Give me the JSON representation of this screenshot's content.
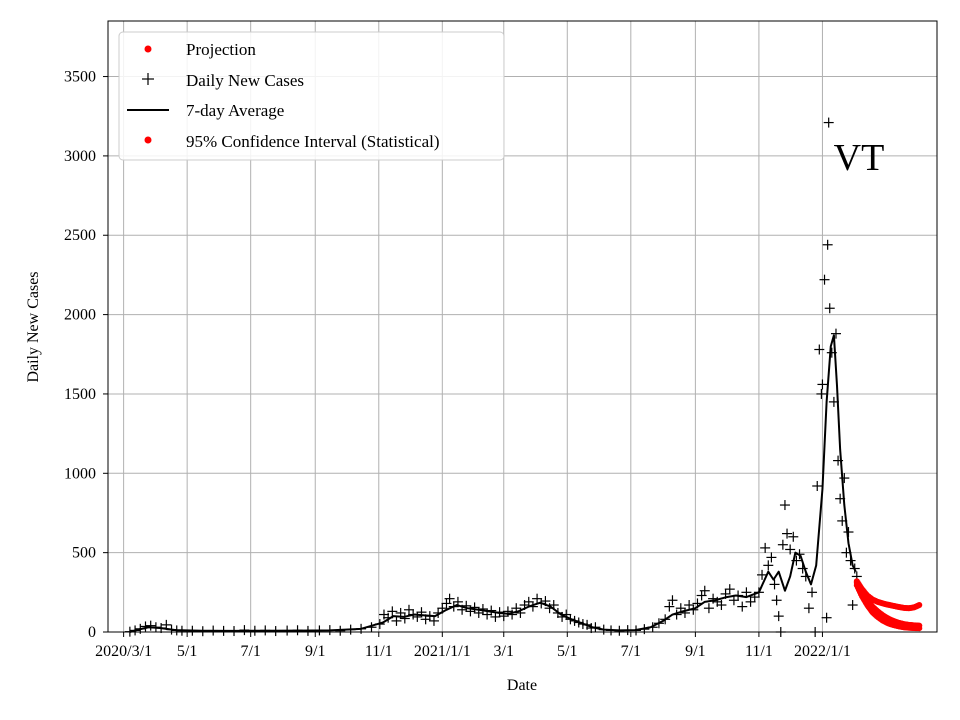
{
  "chart_data": {
    "type": "scatter",
    "title": "",
    "annotation": "VT",
    "xlabel": "Date",
    "ylabel": "Daily New Cases",
    "xlim": [
      "2020-02-15",
      "2022-04-21"
    ],
    "ylim": [
      0,
      3850
    ],
    "grid": true,
    "legend_position": "top-left",
    "x_ticks": [
      {
        "date": "2020-03-01",
        "label": "2020/3/1"
      },
      {
        "date": "2020-05-01",
        "label": "5/1"
      },
      {
        "date": "2020-07-01",
        "label": "7/1"
      },
      {
        "date": "2020-09-01",
        "label": "9/1"
      },
      {
        "date": "2020-11-01",
        "label": "11/1"
      },
      {
        "date": "2021-01-01",
        "label": "2021/1/1"
      },
      {
        "date": "2021-03-01",
        "label": "3/1"
      },
      {
        "date": "2021-05-01",
        "label": "5/1"
      },
      {
        "date": "2021-07-01",
        "label": "7/1"
      },
      {
        "date": "2021-09-01",
        "label": "9/1"
      },
      {
        "date": "2021-11-01",
        "label": "11/1"
      },
      {
        "date": "2022-01-01",
        "label": "2022/1/1"
      }
    ],
    "y_ticks": [
      0,
      500,
      1000,
      1500,
      2000,
      2500,
      3000,
      3500
    ],
    "legend": [
      {
        "label": "Projection",
        "marker": "dot",
        "color": "#ff0000"
      },
      {
        "label": "Daily New Cases",
        "marker": "plus",
        "color": "#000000"
      },
      {
        "label": "7-day Average",
        "marker": "line",
        "color": "#000000"
      },
      {
        "label": "95% Confidence Interval (Statistical)",
        "marker": "dot",
        "color": "#ff0000"
      }
    ],
    "series": [
      {
        "name": "7-day Average",
        "style": "line",
        "color": "#000000",
        "points": [
          [
            "2020-03-07",
            0
          ],
          [
            "2020-03-15",
            15
          ],
          [
            "2020-03-25",
            30
          ],
          [
            "2020-04-05",
            25
          ],
          [
            "2020-04-20",
            12
          ],
          [
            "2020-05-15",
            8
          ],
          [
            "2020-06-15",
            7
          ],
          [
            "2020-07-15",
            8
          ],
          [
            "2020-08-15",
            9
          ],
          [
            "2020-09-15",
            10
          ],
          [
            "2020-10-15",
            20
          ],
          [
            "2020-11-05",
            60
          ],
          [
            "2020-11-15",
            100
          ],
          [
            "2020-11-25",
            95
          ],
          [
            "2020-12-05",
            110
          ],
          [
            "2020-12-15",
            105
          ],
          [
            "2020-12-25",
            100
          ],
          [
            "2021-01-05",
            140
          ],
          [
            "2021-01-15",
            170
          ],
          [
            "2021-01-25",
            150
          ],
          [
            "2021-02-05",
            140
          ],
          [
            "2021-02-15",
            130
          ],
          [
            "2021-02-25",
            120
          ],
          [
            "2021-03-05",
            115
          ],
          [
            "2021-03-15",
            130
          ],
          [
            "2021-03-25",
            160
          ],
          [
            "2021-04-05",
            185
          ],
          [
            "2021-04-15",
            160
          ],
          [
            "2021-04-25",
            110
          ],
          [
            "2021-05-05",
            80
          ],
          [
            "2021-05-15",
            55
          ],
          [
            "2021-05-25",
            30
          ],
          [
            "2021-06-05",
            15
          ],
          [
            "2021-06-20",
            10
          ],
          [
            "2021-07-05",
            12
          ],
          [
            "2021-07-20",
            30
          ],
          [
            "2021-08-01",
            70
          ],
          [
            "2021-08-10",
            110
          ],
          [
            "2021-08-20",
            130
          ],
          [
            "2021-09-01",
            150
          ],
          [
            "2021-09-10",
            190
          ],
          [
            "2021-09-20",
            200
          ],
          [
            "2021-10-01",
            220
          ],
          [
            "2021-10-10",
            230
          ],
          [
            "2021-10-20",
            220
          ],
          [
            "2021-11-01",
            250
          ],
          [
            "2021-11-10",
            380
          ],
          [
            "2021-11-15",
            330
          ],
          [
            "2021-11-20",
            380
          ],
          [
            "2021-11-26",
            260
          ],
          [
            "2021-12-01",
            350
          ],
          [
            "2021-12-06",
            500
          ],
          [
            "2021-12-11",
            480
          ],
          [
            "2021-12-16",
            380
          ],
          [
            "2021-12-21",
            300
          ],
          [
            "2021-12-26",
            420
          ],
          [
            "2022-01-01",
            900
          ],
          [
            "2022-01-05",
            1450
          ],
          [
            "2022-01-09",
            1800
          ],
          [
            "2022-01-12",
            1870
          ],
          [
            "2022-01-15",
            1550
          ],
          [
            "2022-01-18",
            1150
          ],
          [
            "2022-01-22",
            800
          ],
          [
            "2022-01-26",
            560
          ],
          [
            "2022-01-30",
            420
          ],
          [
            "2022-02-02",
            380
          ]
        ]
      },
      {
        "name": "Daily New Cases",
        "style": "plus",
        "color": "#000000",
        "points": [
          [
            "2020-03-07",
            2
          ],
          [
            "2020-03-12",
            10
          ],
          [
            "2020-03-17",
            20
          ],
          [
            "2020-03-22",
            35
          ],
          [
            "2020-03-27",
            40
          ],
          [
            "2020-04-01",
            30
          ],
          [
            "2020-04-06",
            25
          ],
          [
            "2020-04-11",
            45
          ],
          [
            "2020-04-16",
            15
          ],
          [
            "2020-04-21",
            10
          ],
          [
            "2020-04-26",
            8
          ],
          [
            "2020-05-06",
            8
          ],
          [
            "2020-05-16",
            5
          ],
          [
            "2020-05-26",
            9
          ],
          [
            "2020-06-05",
            7
          ],
          [
            "2020-06-15",
            6
          ],
          [
            "2020-06-25",
            12
          ],
          [
            "2020-07-05",
            8
          ],
          [
            "2020-07-15",
            10
          ],
          [
            "2020-07-25",
            6
          ],
          [
            "2020-08-05",
            9
          ],
          [
            "2020-08-15",
            11
          ],
          [
            "2020-08-25",
            7
          ],
          [
            "2020-09-05",
            10
          ],
          [
            "2020-09-15",
            12
          ],
          [
            "2020-09-25",
            8
          ],
          [
            "2020-10-05",
            15
          ],
          [
            "2020-10-15",
            20
          ],
          [
            "2020-10-25",
            30
          ],
          [
            "2020-11-02",
            50
          ],
          [
            "2020-11-06",
            110
          ],
          [
            "2020-11-10",
            90
          ],
          [
            "2020-11-14",
            130
          ],
          [
            "2020-11-18",
            70
          ],
          [
            "2020-11-22",
            120
          ],
          [
            "2020-11-26",
            85
          ],
          [
            "2020-11-30",
            140
          ],
          [
            "2020-12-04",
            110
          ],
          [
            "2020-12-08",
            95
          ],
          [
            "2020-12-12",
            125
          ],
          [
            "2020-12-16",
            80
          ],
          [
            "2020-12-20",
            100
          ],
          [
            "2020-12-24",
            70
          ],
          [
            "2020-12-28",
            120
          ],
          [
            "2021-01-01",
            150
          ],
          [
            "2021-01-05",
            180
          ],
          [
            "2021-01-08",
            210
          ],
          [
            "2021-01-12",
            160
          ],
          [
            "2021-01-16",
            190
          ],
          [
            "2021-01-20",
            140
          ],
          [
            "2021-01-24",
            165
          ],
          [
            "2021-01-28",
            130
          ],
          [
            "2021-02-01",
            155
          ],
          [
            "2021-02-05",
            120
          ],
          [
            "2021-02-09",
            145
          ],
          [
            "2021-02-13",
            110
          ],
          [
            "2021-02-17",
            135
          ],
          [
            "2021-02-21",
            95
          ],
          [
            "2021-02-25",
            125
          ],
          [
            "2021-03-01",
            100
          ],
          [
            "2021-03-05",
            130
          ],
          [
            "2021-03-09",
            110
          ],
          [
            "2021-03-13",
            150
          ],
          [
            "2021-03-17",
            120
          ],
          [
            "2021-03-21",
            170
          ],
          [
            "2021-03-25",
            190
          ],
          [
            "2021-03-29",
            160
          ],
          [
            "2021-04-02",
            210
          ],
          [
            "2021-04-06",
            180
          ],
          [
            "2021-04-10",
            195
          ],
          [
            "2021-04-14",
            150
          ],
          [
            "2021-04-18",
            170
          ],
          [
            "2021-04-22",
            120
          ],
          [
            "2021-04-26",
            95
          ],
          [
            "2021-04-30",
            110
          ],
          [
            "2021-05-04",
            80
          ],
          [
            "2021-05-08",
            70
          ],
          [
            "2021-05-12",
            60
          ],
          [
            "2021-05-16",
            50
          ],
          [
            "2021-05-20",
            45
          ],
          [
            "2021-05-24",
            25
          ],
          [
            "2021-05-28",
            30
          ],
          [
            "2021-06-05",
            15
          ],
          [
            "2021-06-12",
            10
          ],
          [
            "2021-06-20",
            8
          ],
          [
            "2021-06-28",
            12
          ],
          [
            "2021-07-06",
            10
          ],
          [
            "2021-07-14",
            18
          ],
          [
            "2021-07-22",
            30
          ],
          [
            "2021-07-28",
            55
          ],
          [
            "2021-08-03",
            80
          ],
          [
            "2021-08-07",
            160
          ],
          [
            "2021-08-10",
            200
          ],
          [
            "2021-08-14",
            110
          ],
          [
            "2021-08-18",
            150
          ],
          [
            "2021-08-22",
            120
          ],
          [
            "2021-08-26",
            170
          ],
          [
            "2021-08-30",
            140
          ],
          [
            "2021-09-03",
            180
          ],
          [
            "2021-09-07",
            230
          ],
          [
            "2021-09-10",
            260
          ],
          [
            "2021-09-14",
            150
          ],
          [
            "2021-09-18",
            210
          ],
          [
            "2021-09-22",
            190
          ],
          [
            "2021-09-26",
            170
          ],
          [
            "2021-09-30",
            240
          ],
          [
            "2021-10-04",
            270
          ],
          [
            "2021-10-08",
            200
          ],
          [
            "2021-10-12",
            230
          ],
          [
            "2021-10-16",
            160
          ],
          [
            "2021-10-20",
            250
          ],
          [
            "2021-10-24",
            190
          ],
          [
            "2021-10-28",
            220
          ],
          [
            "2021-11-01",
            250
          ],
          [
            "2021-11-04",
            360
          ],
          [
            "2021-11-07",
            530
          ],
          [
            "2021-11-10",
            420
          ],
          [
            "2021-11-13",
            470
          ],
          [
            "2021-11-16",
            300
          ],
          [
            "2021-11-18",
            200
          ],
          [
            "2021-11-20",
            100
          ],
          [
            "2021-11-22",
            0
          ],
          [
            "2021-11-24",
            550
          ],
          [
            "2021-11-26",
            800
          ],
          [
            "2021-11-28",
            620
          ],
          [
            "2021-12-01",
            520
          ],
          [
            "2021-12-04",
            600
          ],
          [
            "2021-12-07",
            450
          ],
          [
            "2021-12-10",
            490
          ],
          [
            "2021-12-13",
            400
          ],
          [
            "2021-12-16",
            350
          ],
          [
            "2021-12-19",
            150
          ],
          [
            "2021-12-22",
            250
          ],
          [
            "2021-12-25",
            0
          ],
          [
            "2021-12-27",
            920
          ],
          [
            "2021-12-29",
            1780
          ],
          [
            "2021-12-31",
            1500
          ],
          [
            "2022-01-01",
            1560
          ],
          [
            "2022-01-03",
            2220
          ],
          [
            "2022-01-05",
            90
          ],
          [
            "2022-01-06",
            2440
          ],
          [
            "2022-01-07",
            3210
          ],
          [
            "2022-01-08",
            2040
          ],
          [
            "2022-01-10",
            1760
          ],
          [
            "2022-01-12",
            1450
          ],
          [
            "2022-01-14",
            1880
          ],
          [
            "2022-01-16",
            1080
          ],
          [
            "2022-01-18",
            840
          ],
          [
            "2022-01-20",
            700
          ],
          [
            "2022-01-22",
            970
          ],
          [
            "2022-01-24",
            500
          ],
          [
            "2022-01-26",
            630
          ],
          [
            "2022-01-28",
            450
          ],
          [
            "2022-01-30",
            170
          ],
          [
            "2022-02-01",
            400
          ],
          [
            "2022-02-03",
            350
          ]
        ]
      },
      {
        "name": "Projection",
        "style": "dot",
        "color": "#ff0000",
        "points": [
          [
            "2022-02-03",
            310
          ],
          [
            "2022-02-08",
            250
          ],
          [
            "2022-02-13",
            200
          ],
          [
            "2022-02-18",
            160
          ],
          [
            "2022-02-23",
            130
          ],
          [
            "2022-02-28",
            105
          ],
          [
            "2022-03-05",
            85
          ],
          [
            "2022-03-10",
            70
          ],
          [
            "2022-03-15",
            58
          ],
          [
            "2022-03-20",
            50
          ],
          [
            "2022-03-25",
            45
          ],
          [
            "2022-03-30",
            42
          ],
          [
            "2022-04-04",
            40
          ]
        ]
      },
      {
        "name": "95% Confidence Interval (Statistical)",
        "style": "dot",
        "color": "#ff0000",
        "upper": [
          [
            "2022-02-03",
            320
          ],
          [
            "2022-02-08",
            270
          ],
          [
            "2022-02-13",
            230
          ],
          [
            "2022-02-18",
            205
          ],
          [
            "2022-02-23",
            190
          ],
          [
            "2022-02-28",
            180
          ],
          [
            "2022-03-05",
            172
          ],
          [
            "2022-03-10",
            165
          ],
          [
            "2022-03-15",
            158
          ],
          [
            "2022-03-20",
            152
          ],
          [
            "2022-03-25",
            150
          ],
          [
            "2022-03-30",
            155
          ],
          [
            "2022-04-04",
            170
          ]
        ],
        "lower": [
          [
            "2022-02-03",
            295
          ],
          [
            "2022-02-08",
            225
          ],
          [
            "2022-02-13",
            170
          ],
          [
            "2022-02-18",
            125
          ],
          [
            "2022-02-23",
            95
          ],
          [
            "2022-02-28",
            72
          ],
          [
            "2022-03-05",
            55
          ],
          [
            "2022-03-10",
            44
          ],
          [
            "2022-03-15",
            36
          ],
          [
            "2022-03-20",
            30
          ],
          [
            "2022-03-25",
            27
          ],
          [
            "2022-03-30",
            25
          ],
          [
            "2022-04-04",
            24
          ]
        ]
      }
    ]
  }
}
